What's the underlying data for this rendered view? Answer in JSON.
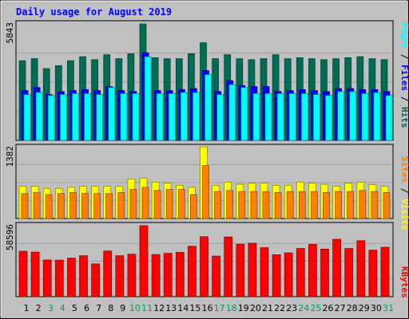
{
  "chart_data": {
    "type": "bar",
    "title": "Daily usage for August 2019",
    "days": [
      "1",
      "2",
      "3",
      "4",
      "5",
      "6",
      "7",
      "8",
      "9",
      "10",
      "11",
      "12",
      "13",
      "14",
      "15",
      "16",
      "17",
      "18",
      "19",
      "20",
      "21",
      "22",
      "23",
      "24",
      "25",
      "26",
      "27",
      "28",
      "29",
      "30",
      "31"
    ],
    "weekend_days": [
      "3",
      "4",
      "10",
      "11",
      "17",
      "18",
      "24",
      "25",
      "31"
    ],
    "panels": [
      {
        "name": "hits-files-pages",
        "max_label": "5843",
        "ymax": 5843,
        "series": [
          {
            "name": "Hits",
            "color": "#006b54",
            "values": [
              4000,
              4100,
              3600,
              3750,
              4000,
              4200,
              4050,
              4300,
              4100,
              4350,
              5843,
              4150,
              4100,
              4100,
              4350,
              4900,
              4100,
              4300,
              4100,
              4050,
              4100,
              4300,
              4100,
              4150,
              4100,
              4050,
              4100,
              4150,
              4200,
              4100,
              4050
            ]
          },
          {
            "name": "Files",
            "color": "#0000ff",
            "values": [
              2500,
              2650,
              2300,
              2450,
              2500,
              2550,
              2500,
              2700,
              2500,
              2450,
              4400,
              2500,
              2500,
              2550,
              2600,
              3500,
              2450,
              3000,
              2750,
              2700,
              2700,
              2450,
              2500,
              2550,
              2500,
              2450,
              2600,
              2600,
              2550,
              2550,
              2450
            ]
          },
          {
            "name": "Pages",
            "color": "#00ffff",
            "values": [
              2300,
              2400,
              2250,
              2300,
              2350,
              2350,
              2300,
              2650,
              2350,
              2350,
              4200,
              2350,
              2350,
              2400,
              2400,
              3300,
              2300,
              2800,
              2650,
              2350,
              2350,
              2350,
              2350,
              2350,
              2300,
              2250,
              2450,
              2450,
              2350,
              2400,
              2250
            ]
          }
        ],
        "legend": [
          "Pages",
          "Files",
          "Hits"
        ],
        "legend_colors": [
          "#00ffff",
          "#0000ff",
          "#006b54"
        ]
      },
      {
        "name": "visits-sites",
        "max_label": "1382",
        "ymax": 1382,
        "series": [
          {
            "name": "Visits",
            "color": "#ffff00",
            "values": [
              620,
              620,
              580,
              580,
              600,
              620,
              620,
              620,
              620,
              760,
              780,
              700,
              680,
              640,
              600,
              1382,
              640,
              700,
              660,
              680,
              680,
              640,
              640,
              700,
              680,
              660,
              620,
              680,
              700,
              650,
              620
            ]
          },
          {
            "name": "Sites",
            "color": "#ff8000",
            "values": [
              480,
              500,
              460,
              480,
              500,
              480,
              480,
              480,
              500,
              560,
              600,
              540,
              560,
              560,
              460,
              1020,
              520,
              540,
              520,
              520,
              520,
              500,
              520,
              520,
              520,
              500,
              520,
              520,
              540,
              520,
              500
            ]
          }
        ],
        "legend": [
          "Sites",
          "Visits"
        ],
        "legend_colors": [
          "#ff8000",
          "#ffff00"
        ]
      },
      {
        "name": "kbytes",
        "max_label": "58596",
        "ymax": 58596,
        "series": [
          {
            "name": "KBytes",
            "color": "#ff0000",
            "values": [
              37500,
              36800,
              30300,
              30200,
              31800,
              33800,
              27100,
              37700,
              33800,
              35100,
              58596,
              34800,
              35800,
              36600,
              41600,
              49500,
              33500,
              49300,
              43300,
              44100,
              40500,
              34600,
              36200,
              39800,
              43200,
              39300,
              47400,
              39800,
              46200,
              38400,
              40800
            ]
          }
        ],
        "legend": [
          "KBytes"
        ],
        "legend_colors": [
          "#ff0000"
        ]
      }
    ]
  }
}
